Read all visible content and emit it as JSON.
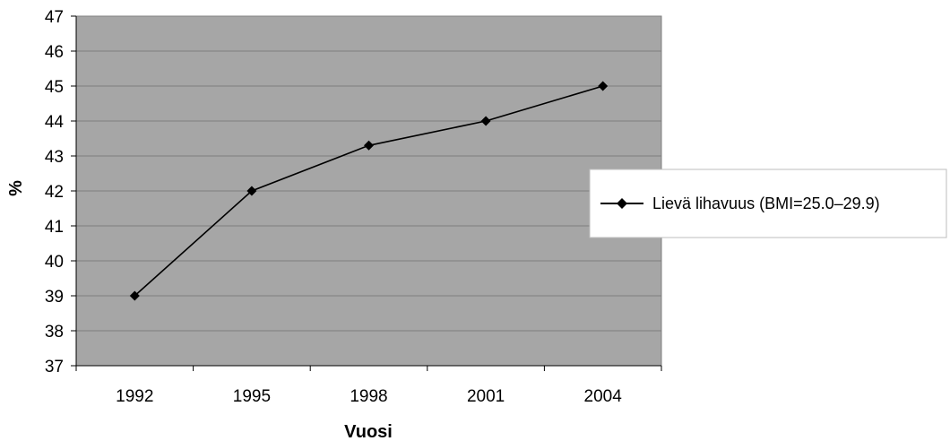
{
  "chart_data": {
    "type": "line",
    "title": "",
    "xlabel": "Vuosi",
    "ylabel": "%",
    "categories": [
      "1992",
      "1995",
      "1998",
      "2001",
      "2004"
    ],
    "series": [
      {
        "name": "Lievä lihavuus (BMI=25.0–29.9)",
        "values": [
          39.0,
          42.0,
          43.3,
          44.0,
          45.0
        ]
      }
    ],
    "ylim": [
      37,
      47
    ],
    "yticks": [
      "37",
      "38",
      "39",
      "40",
      "41",
      "42",
      "43",
      "44",
      "45",
      "46",
      "47"
    ],
    "grid": true,
    "legend_position": "right",
    "colors": {
      "plot_background": "#a6a6a6",
      "line": "#000000",
      "gridline": "#7f7f7f"
    }
  }
}
